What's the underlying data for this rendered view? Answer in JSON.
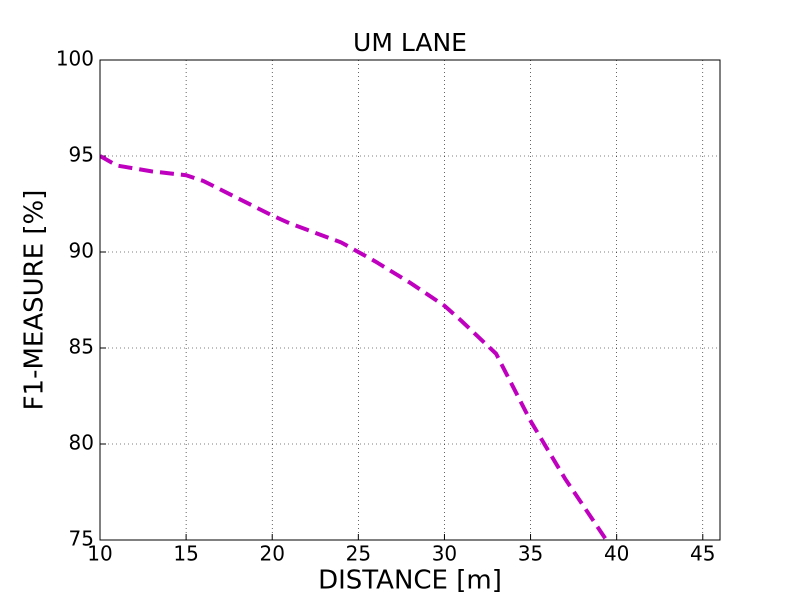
{
  "chart_data": {
    "type": "line",
    "title": "UM LANE",
    "x_label": "DISTANCE [m]",
    "y_label": "F1-MEASURE [%]",
    "x": [
      10,
      11,
      13,
      15,
      16,
      18,
      20,
      21,
      24,
      26,
      28,
      30,
      31,
      33,
      35,
      37,
      39.4
    ],
    "series": [
      {
        "name": "UM LANE",
        "color": "#bf00bf",
        "values": [
          95.0,
          94.5,
          94.2,
          94.0,
          93.7,
          92.8,
          91.9,
          91.5,
          90.5,
          89.5,
          88.4,
          87.2,
          86.4,
          84.7,
          81.2,
          78.2,
          75.0
        ]
      }
    ],
    "xlim": [
      10,
      46
    ],
    "xticks": [
      10,
      15,
      20,
      25,
      30,
      35,
      40,
      45
    ],
    "ylim": [
      75,
      100
    ],
    "yticks": [
      75,
      80,
      85,
      90,
      95,
      100
    ],
    "grid": true
  }
}
